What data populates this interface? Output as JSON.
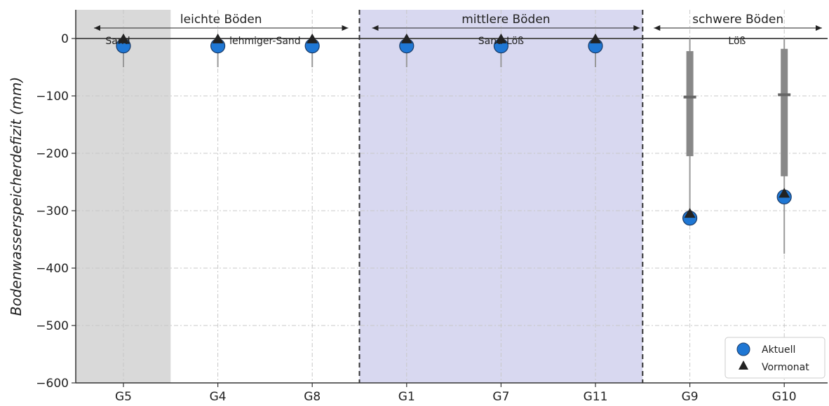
{
  "chart_data": {
    "type": "scatter",
    "ylabel": "Bodenwasserspeicherdefizit (mm)",
    "ylim": [
      -600,
      50
    ],
    "yticks": [
      0,
      -100,
      -200,
      -300,
      -400,
      -500,
      -600
    ],
    "categories": [
      "G5",
      "G4",
      "G8",
      "G1",
      "G7",
      "G11",
      "G9",
      "G10"
    ],
    "grid": "dashed, x and y",
    "soil_groups": [
      {
        "label": "leichte Böden",
        "categories": [
          "G5",
          "G4",
          "G8"
        ]
      },
      {
        "label": "mittlere Böden",
        "categories": [
          "G1",
          "G7",
          "G11"
        ]
      },
      {
        "label": "schwere Böden",
        "categories": [
          "G9",
          "G10"
        ]
      }
    ],
    "soil_types": [
      {
        "label": "Sand",
        "categories": [
          "G5"
        ],
        "shade": "#d9d9d9"
      },
      {
        "label": "lehmiger-Sand",
        "categories": [
          "G4",
          "G8"
        ],
        "shade": "none"
      },
      {
        "label": "Sand-Löß",
        "categories": [
          "G1",
          "G7",
          "G11"
        ],
        "shade": "#d8d8f0"
      },
      {
        "label": "Löß",
        "categories": [
          "G9",
          "G10"
        ],
        "shade": "none"
      }
    ],
    "series": [
      {
        "name": "Aktuell",
        "marker": "circle",
        "color": "#1f77d4",
        "values": [
          -13,
          -13,
          -13,
          -13,
          -13,
          -13,
          -313,
          -276
        ]
      },
      {
        "name": "Vormonat",
        "marker": "triangle",
        "color": "#222222",
        "values": [
          -1,
          -1,
          -1,
          -1,
          -1,
          -1,
          -305,
          -270
        ]
      }
    ],
    "ranges": [
      {
        "category": "G5",
        "min": -50,
        "q1": -13,
        "median": -10,
        "q3": -5,
        "max": 0
      },
      {
        "category": "G4",
        "min": -50,
        "q1": -13,
        "median": -10,
        "q3": -5,
        "max": 0
      },
      {
        "category": "G8",
        "min": -50,
        "q1": -13,
        "median": -10,
        "q3": -5,
        "max": 0
      },
      {
        "category": "G1",
        "min": -50,
        "q1": -13,
        "median": -10,
        "q3": -5,
        "max": 0
      },
      {
        "category": "G7",
        "min": -50,
        "q1": -13,
        "median": -10,
        "q3": -5,
        "max": 0
      },
      {
        "category": "G11",
        "min": -50,
        "q1": -13,
        "median": -10,
        "q3": -5,
        "max": 0
      },
      {
        "category": "G9",
        "min": -315,
        "q1": -205,
        "median": -102,
        "q3": -22,
        "max": 0
      },
      {
        "category": "G10",
        "min": -375,
        "q1": -240,
        "median": -98,
        "q3": -18,
        "max": 0
      }
    ],
    "legend": {
      "position": "bottom-right",
      "entries": [
        "Aktuell",
        "Vormonat"
      ]
    }
  }
}
